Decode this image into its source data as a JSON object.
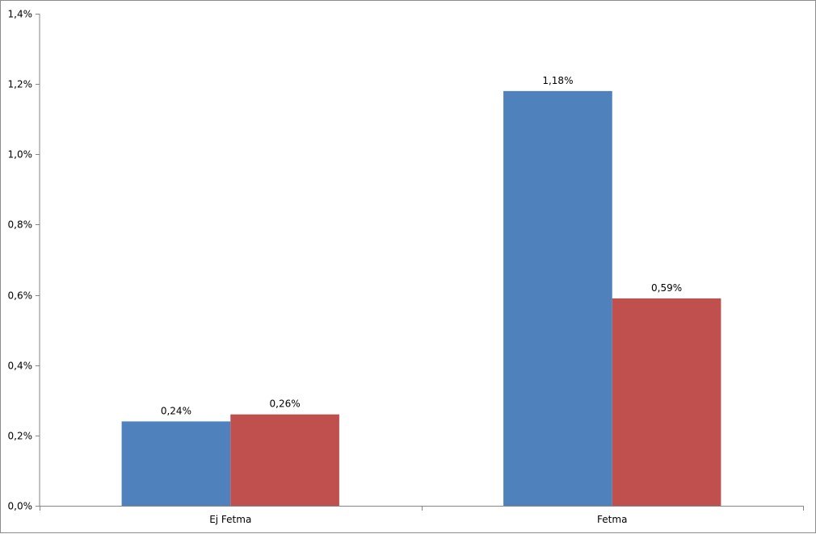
{
  "chart_data": {
    "type": "bar",
    "categories": [
      "Ej Fetma",
      "Fetma"
    ],
    "series": [
      {
        "values": [
          0.24,
          1.18
        ],
        "color": "#4f81bd",
        "labels": [
          "0,24%",
          "1,18%"
        ]
      },
      {
        "values": [
          0.26,
          0.59
        ],
        "color": "#c0504d",
        "labels": [
          "0,26%",
          "0,59%"
        ]
      }
    ],
    "ylim": [
      0,
      1.4
    ],
    "yticks": [
      0,
      0.2,
      0.4,
      0.6,
      0.8,
      1.0,
      1.2,
      1.4
    ],
    "ytick_labels": [
      "0,0%",
      "0,2%",
      "0,4%",
      "0,6%",
      "0,8%",
      "1,0%",
      "1,2%",
      "1,4%"
    ],
    "legend": "none",
    "grid": false
  }
}
